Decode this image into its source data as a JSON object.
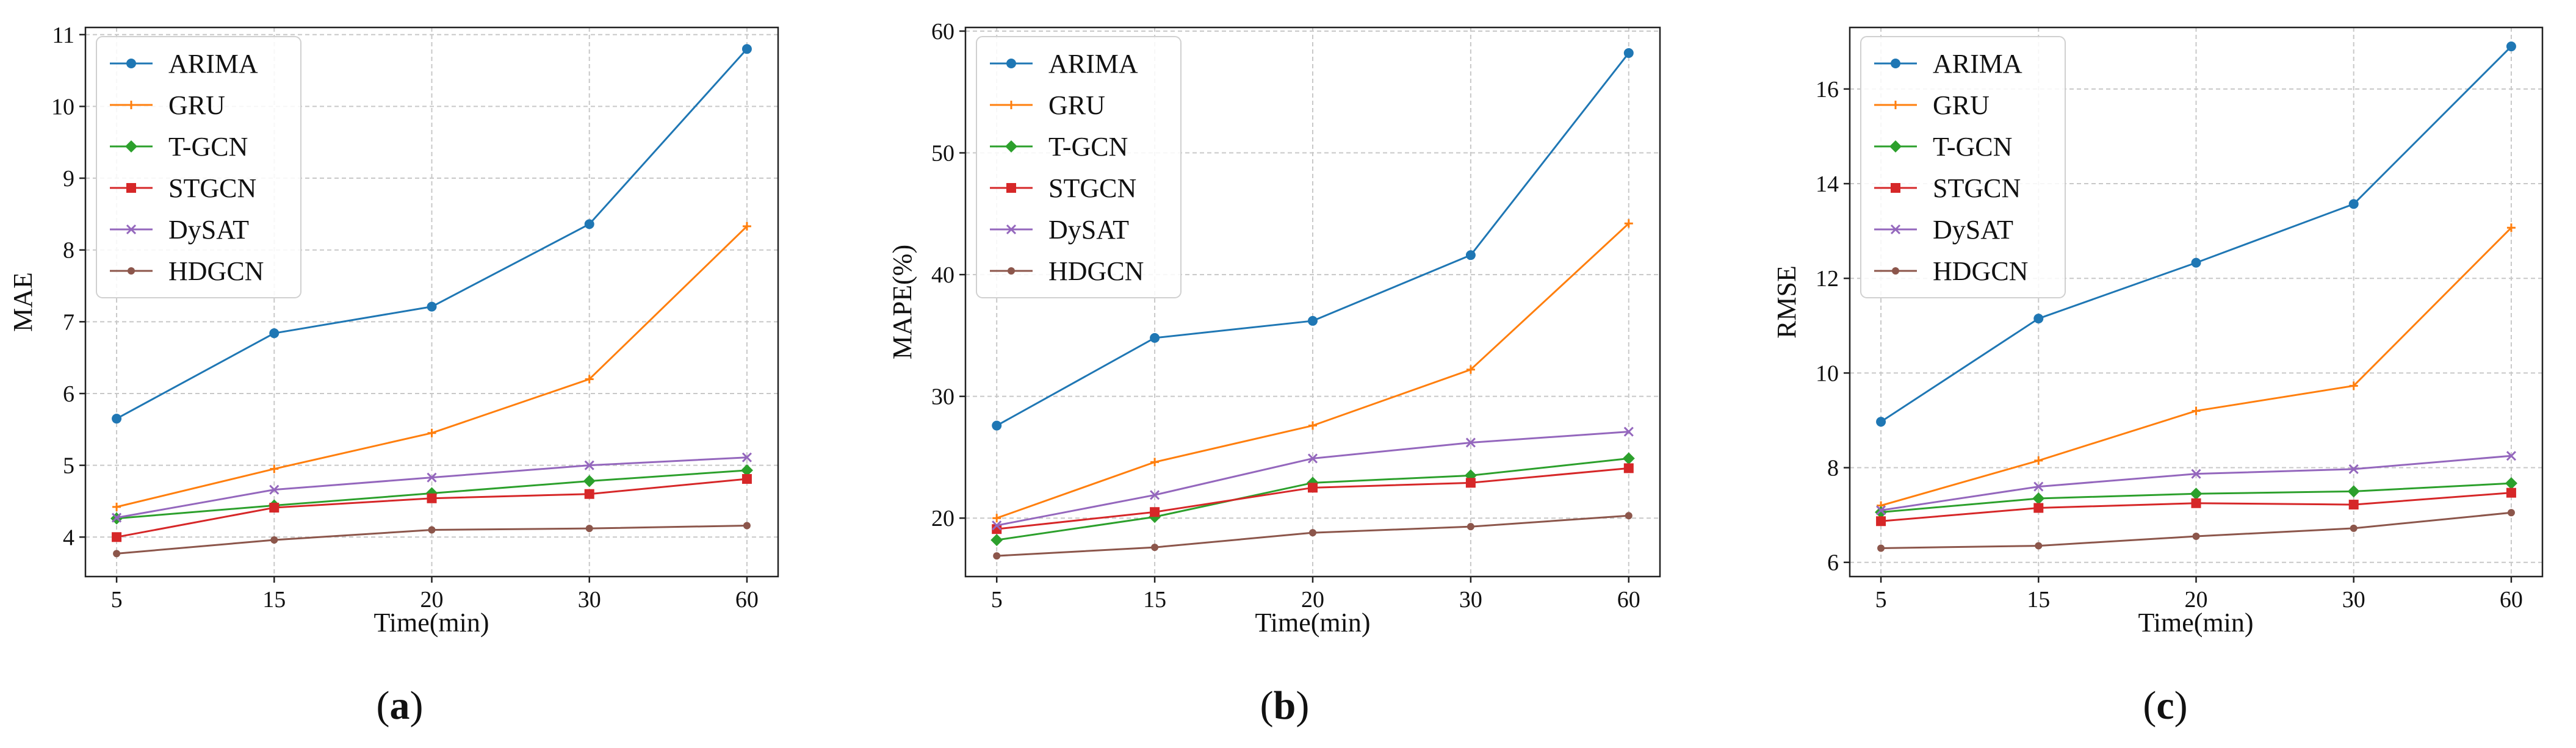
{
  "chart_data": [
    {
      "type": "line",
      "panel_label": "a",
      "title": "",
      "xlabel": "Time(min)",
      "ylabel": "MAE",
      "categories": [
        "5",
        "15",
        "20",
        "30",
        "60"
      ],
      "ylim": [
        3.45,
        11.1
      ],
      "yticks": [
        4,
        5,
        6,
        7,
        8,
        9,
        10,
        11
      ],
      "grid": true,
      "legend": "top-left",
      "series": [
        {
          "name": "ARIMA",
          "color": "#1f77b4",
          "marker": "circle",
          "values": [
            5.65,
            6.84,
            7.21,
            8.36,
            10.8
          ]
        },
        {
          "name": "GRU",
          "color": "#ff7f0e",
          "marker": "plus",
          "values": [
            4.42,
            4.95,
            5.45,
            6.2,
            8.33
          ]
        },
        {
          "name": "T-GCN",
          "color": "#2ca02c",
          "marker": "diamond",
          "values": [
            4.26,
            4.44,
            4.61,
            4.78,
            4.93
          ]
        },
        {
          "name": "STGCN",
          "color": "#d62728",
          "marker": "square",
          "values": [
            4.0,
            4.41,
            4.54,
            4.6,
            4.81
          ]
        },
        {
          "name": "DySAT",
          "color": "#9467bd",
          "marker": "x",
          "values": [
            4.27,
            4.66,
            4.83,
            5.0,
            5.11
          ]
        },
        {
          "name": "HDGCN",
          "color": "#8c564b",
          "marker": "dot",
          "values": [
            3.77,
            3.96,
            4.1,
            4.12,
            4.16
          ]
        }
      ]
    },
    {
      "type": "line",
      "panel_label": "b",
      "title": "",
      "xlabel": "Time(min)",
      "ylabel": "MAPE(%)",
      "categories": [
        "5",
        "15",
        "20",
        "30",
        "60"
      ],
      "ylim": [
        15.2,
        60.3
      ],
      "yticks": [
        20,
        30,
        40,
        50,
        60
      ],
      "grid": true,
      "legend": "top-left",
      "series": [
        {
          "name": "ARIMA",
          "color": "#1f77b4",
          "marker": "circle",
          "values": [
            27.6,
            34.8,
            36.2,
            41.6,
            58.2
          ]
        },
        {
          "name": "GRU",
          "color": "#ff7f0e",
          "marker": "plus",
          "values": [
            20.0,
            24.6,
            27.6,
            32.2,
            44.2
          ]
        },
        {
          "name": "T-GCN",
          "color": "#2ca02c",
          "marker": "diamond",
          "values": [
            18.2,
            20.1,
            22.9,
            23.5,
            24.9
          ]
        },
        {
          "name": "STGCN",
          "color": "#d62728",
          "marker": "square",
          "values": [
            19.1,
            20.5,
            22.5,
            22.9,
            24.1
          ]
        },
        {
          "name": "DySAT",
          "color": "#9467bd",
          "marker": "x",
          "values": [
            19.4,
            21.9,
            24.9,
            26.2,
            27.1
          ]
        },
        {
          "name": "HDGCN",
          "color": "#8c564b",
          "marker": "dot",
          "values": [
            16.9,
            17.6,
            18.8,
            19.3,
            20.2
          ]
        }
      ]
    },
    {
      "type": "line",
      "panel_label": "c",
      "title": "",
      "xlabel": "Time(min)",
      "ylabel": "RMSE",
      "categories": [
        "5",
        "15",
        "20",
        "30",
        "60"
      ],
      "ylim": [
        5.7,
        17.3
      ],
      "yticks": [
        6,
        8,
        10,
        12,
        14,
        16
      ],
      "grid": true,
      "legend": "top-left",
      "series": [
        {
          "name": "ARIMA",
          "color": "#1f77b4",
          "marker": "circle",
          "values": [
            8.97,
            11.15,
            12.33,
            13.57,
            16.9
          ]
        },
        {
          "name": "GRU",
          "color": "#ff7f0e",
          "marker": "plus",
          "values": [
            7.2,
            8.15,
            9.2,
            9.73,
            13.07
          ]
        },
        {
          "name": "T-GCN",
          "color": "#2ca02c",
          "marker": "diamond",
          "values": [
            7.06,
            7.35,
            7.45,
            7.5,
            7.67
          ]
        },
        {
          "name": "STGCN",
          "color": "#d62728",
          "marker": "square",
          "values": [
            6.87,
            7.15,
            7.25,
            7.22,
            7.47
          ]
        },
        {
          "name": "DySAT",
          "color": "#9467bd",
          "marker": "x",
          "values": [
            7.1,
            7.6,
            7.87,
            7.97,
            8.25
          ]
        },
        {
          "name": "HDGCN",
          "color": "#8c564b",
          "marker": "dot",
          "values": [
            6.3,
            6.35,
            6.55,
            6.72,
            7.05
          ]
        }
      ]
    }
  ]
}
